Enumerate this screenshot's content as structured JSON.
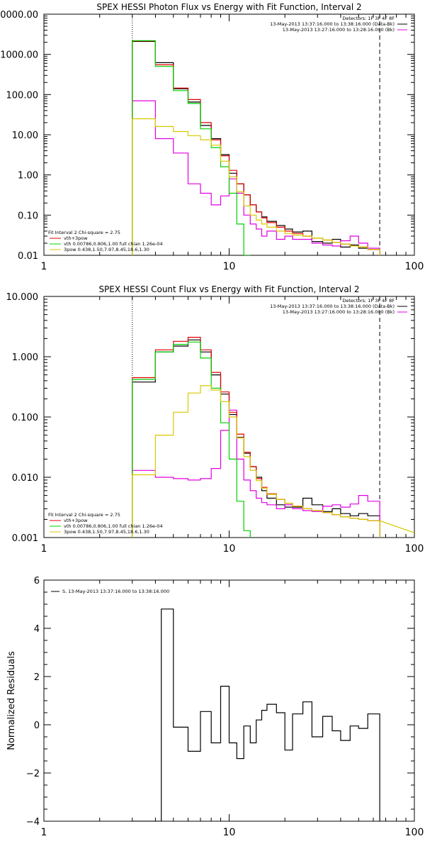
{
  "colors": {
    "data": "#000000",
    "background": "#e00000",
    "total": "#e00000",
    "thermal": "#00d000",
    "powerlaw": "#d8c800",
    "fit_range": "#000000"
  },
  "chart_data": [
    {
      "type": "line",
      "title": "SPEX HESSI Photon Flux vs Energy with Fit Function, Interval 2",
      "xlabel": "",
      "ylabel": "",
      "xscale": "log",
      "yscale": "log",
      "xlim": [
        1,
        100
      ],
      "ylim": [
        0.01,
        10000
      ],
      "xticks": [
        "1",
        "10",
        "100"
      ],
      "yticks": [
        "10000.00",
        "1000.00",
        "100.00",
        "10.00",
        "1.00",
        "0.10",
        "0.01"
      ],
      "fit_range_lines": [
        3,
        65
      ],
      "legend_top": [
        "Detectors: 1F 3F 4F 8F",
        "13-May-2013 13:37:16.000 to 13:38:16.000 (Data-Bk)",
        "13-May-2013 13:27:16.000 to 13:28:16.000 (Bk)"
      ],
      "legend_bottom": [
        "Fit Interval 2   Chi-square = 2.75",
        "vth+3pow",
        "vth 0.00786,0.806,1.00  full chian 1.26e-04",
        "3pow 0.438,1.50,7.97,8.45,18.6,1.30"
      ],
      "edges": [
        3,
        4,
        5,
        6,
        7,
        8,
        9,
        10,
        11,
        12,
        13,
        14,
        15,
        16,
        18,
        20,
        22,
        25,
        28,
        32,
        36,
        40,
        45,
        50,
        56,
        65
      ],
      "series": [
        {
          "name": "Data-Bk",
          "color": "#000000",
          "values": [
            2100,
            620,
            140,
            65,
            17,
            8,
            3.2,
            1.1,
            0.6,
            0.32,
            0.18,
            0.12,
            0.09,
            0.07,
            0.055,
            0.045,
            0.038,
            0.04,
            0.022,
            0.02,
            0.025,
            0.016,
            0.018,
            0.015,
            0.014
          ]
        },
        {
          "name": "Bk",
          "color": "#e000e0",
          "values": [
            70,
            8,
            3.5,
            0.6,
            0.35,
            0.18,
            0.3,
            0.8,
            0.35,
            0.1,
            0.06,
            0.045,
            0.03,
            0.04,
            0.025,
            0.03,
            0.025,
            0.025,
            0.02,
            0.018,
            0.017,
            0.023,
            0.03,
            0.02,
            0.015
          ]
        },
        {
          "name": "vth+3pow",
          "color": "#e00000",
          "values": [
            2150,
            550,
            145,
            75,
            20,
            7.5,
            3.0,
            1.3,
            0.6,
            0.32,
            0.18,
            0.12,
            0.085,
            0.065,
            0.05,
            0.04,
            0.035,
            0.03,
            0.027,
            0.024,
            0.021,
            0.019,
            0.017,
            0.016,
            0.014
          ]
        },
        {
          "name": "vth",
          "color": "#00d000",
          "values": [
            2200,
            500,
            125,
            60,
            14,
            4.8,
            1.6,
            0.35,
            0.06,
            0.008
          ]
        },
        {
          "name": "3pow",
          "color": "#d8c800",
          "values": [
            25,
            16,
            12,
            9.5,
            7.5,
            5.5,
            2.2,
            0.9,
            0.38,
            0.17,
            0.1,
            0.075,
            0.06,
            0.05,
            0.04,
            0.035,
            0.032,
            0.03,
            0.027,
            0.024,
            0.021,
            0.019,
            0.017,
            0.016,
            0.014
          ]
        }
      ]
    },
    {
      "type": "line",
      "title": "SPEX HESSI Count Flux vs Energy with Fit Function, Interval 2",
      "xlabel": "",
      "ylabel": "",
      "xscale": "log",
      "yscale": "log",
      "xlim": [
        1,
        100
      ],
      "ylim": [
        0.001,
        10
      ],
      "xticks": [
        "1",
        "10",
        "100"
      ],
      "yticks": [
        "10.000",
        "1.000",
        "0.100",
        "0.010",
        "0.001"
      ],
      "fit_range_lines": [
        3,
        65
      ],
      "legend_top": [
        "Detectors: 1F 3F 4F 8F",
        "13-May-2013 13:37:16.000 to 13:38:16.000 (Data-Bk)",
        "13-May-2013 13:27:16.000 to 13:28:16.000 (Bk)"
      ],
      "legend_bottom": [
        "Fit Interval 2   Chi-square = 2.75",
        "vth+3pow",
        "vth 0.00786,0.806,1.00  full chian 1.26e-04",
        "3pow 0.438,1.50,7.97,8.45,18.6,1.30"
      ],
      "edges": [
        3,
        4,
        5,
        6,
        7,
        8,
        9,
        10,
        11,
        12,
        13,
        14,
        15,
        16,
        18,
        20,
        22,
        25,
        28,
        32,
        36,
        40,
        45,
        50,
        56,
        65
      ],
      "series": [
        {
          "name": "Data-Bk",
          "color": "#000000",
          "values": [
            0.38,
            1.2,
            1.5,
            1.9,
            1.2,
            0.5,
            0.24,
            0.11,
            0.046,
            0.025,
            0.015,
            0.01,
            0.006,
            0.0045,
            0.0035,
            0.0032,
            0.0032,
            0.0045,
            0.0035,
            0.0027,
            0.003,
            0.0025,
            0.0023,
            0.0025,
            0.0023
          ]
        },
        {
          "name": "Bk",
          "color": "#e000e0",
          "values": [
            0.013,
            0.01,
            0.0095,
            0.009,
            0.0095,
            0.014,
            0.06,
            0.13,
            0.02,
            0.009,
            0.006,
            0.0045,
            0.0038,
            0.0035,
            0.003,
            0.0035,
            0.003,
            0.0028,
            0.0027,
            0.0033,
            0.0035,
            0.0032,
            0.0036,
            0.005,
            0.004
          ]
        },
        {
          "name": "vth+3pow",
          "color": "#e00000",
          "values": [
            0.45,
            1.3,
            1.8,
            2.1,
            1.3,
            0.55,
            0.26,
            0.12,
            0.052,
            0.026,
            0.015,
            0.0095,
            0.0068,
            0.0053,
            0.0043,
            0.0037,
            0.0033,
            0.003,
            0.0028,
            0.0026,
            0.0024,
            0.0022,
            0.0021,
            0.002,
            0.0019
          ]
        },
        {
          "name": "vth",
          "color": "#00d000",
          "values": [
            0.42,
            1.2,
            1.6,
            1.75,
            0.95,
            0.3,
            0.08,
            0.02,
            0.004,
            0.0013
          ]
        },
        {
          "name": "3pow",
          "color": "#d8c800",
          "values": [
            0.011,
            0.05,
            0.12,
            0.25,
            0.33,
            0.28,
            0.18,
            0.1,
            0.045,
            0.022,
            0.013,
            0.0088,
            0.0066,
            0.0052,
            0.0043,
            0.0037,
            0.0033,
            0.003,
            0.0028,
            0.0026,
            0.0024,
            0.0022,
            0.0021,
            0.002,
            0.0019
          ]
        }
      ],
      "tail": {
        "color": "#d8c800",
        "from": [
          65,
          0.0019
        ],
        "to": [
          100,
          0.0012
        ]
      }
    },
    {
      "type": "line",
      "title": "",
      "xlabel": "",
      "ylabel": "Normalized Residuals",
      "xscale": "log",
      "yscale": "linear",
      "xlim": [
        1,
        100
      ],
      "ylim": [
        -4,
        6
      ],
      "xticks": [
        "1",
        "10",
        "100"
      ],
      "yticks": [
        "6",
        "4",
        "2",
        "0",
        "−2",
        "−4"
      ],
      "legend_top": [
        "S. 13-May-2013 13:37:16.000 to 13:38:16.000"
      ],
      "edges": [
        3,
        4.3,
        5,
        6,
        7,
        8,
        9,
        10,
        11,
        12,
        13,
        14,
        15,
        16,
        18,
        20,
        22,
        25,
        28,
        32,
        36,
        40,
        45,
        50,
        56,
        65
      ],
      "series": [
        {
          "name": "",
          "color": "#000000",
          "values": [
            -4.0,
            4.8,
            -0.1,
            -1.1,
            0.55,
            -0.75,
            1.6,
            -0.75,
            -1.4,
            -0.05,
            -0.75,
            0.2,
            0.6,
            0.85,
            0.5,
            -1.05,
            0.45,
            0.95,
            -0.5,
            0.35,
            -0.25,
            -0.65,
            -0.05,
            -0.15,
            0.45
          ]
        }
      ]
    }
  ]
}
